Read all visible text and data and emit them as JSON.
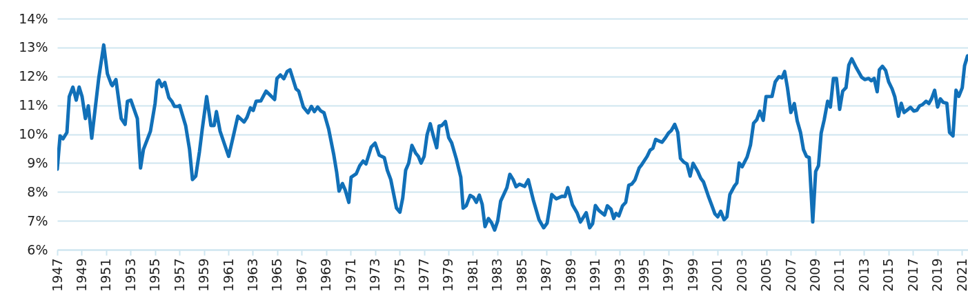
{
  "chart_data": {
    "type": "line",
    "xlim": [
      1947,
      2021.5
    ],
    "ylim": [
      6,
      14
    ],
    "xticks": [
      1947,
      1949,
      1951,
      1953,
      1955,
      1957,
      1959,
      1961,
      1963,
      1965,
      1967,
      1969,
      1971,
      1973,
      1975,
      1977,
      1979,
      1981,
      1983,
      1985,
      1987,
      1989,
      1991,
      1993,
      1995,
      1997,
      1999,
      2001,
      2003,
      2005,
      2007,
      2009,
      2011,
      2013,
      2015,
      2017,
      2019,
      2021
    ],
    "yticks": [
      {
        "value": 6,
        "label": "6%"
      },
      {
        "value": 7,
        "label": "7%"
      },
      {
        "value": 8,
        "label": "8%"
      },
      {
        "value": 9,
        "label": "9%"
      },
      {
        "value": 10,
        "label": "10%"
      },
      {
        "value": 11,
        "label": "11%"
      },
      {
        "value": 12,
        "label": "12%"
      },
      {
        "value": 13,
        "label": "13%"
      },
      {
        "value": 14,
        "label": "14%"
      }
    ],
    "grid": "y",
    "marker": "none",
    "line_style": "solid",
    "series": [
      {
        "color": "#1170b8",
        "x": [
          1947.0,
          1947.23,
          1947.47,
          1947.79,
          1947.98,
          1948.28,
          1948.55,
          1948.79,
          1949.03,
          1949.3,
          1949.54,
          1949.82,
          1950.39,
          1950.8,
          1951.1,
          1951.42,
          1951.5,
          1951.8,
          1952.23,
          1952.55,
          1952.74,
          1953.02,
          1953.55,
          1953.81,
          1954.05,
          1954.62,
          1955.0,
          1955.18,
          1955.32,
          1955.56,
          1955.8,
          1956.13,
          1956.37,
          1956.59,
          1956.88,
          1957.01,
          1957.5,
          1957.82,
          1958.06,
          1958.33,
          1958.63,
          1958.85,
          1959.22,
          1959.57,
          1959.83,
          1960.02,
          1960.32,
          1961.02,
          1961.45,
          1961.77,
          1962.28,
          1962.52,
          1962.8,
          1963.03,
          1963.27,
          1963.65,
          1964.08,
          1964.78,
          1964.97,
          1965.25,
          1965.53,
          1965.81,
          1966.04,
          1966.53,
          1966.75,
          1967.13,
          1967.51,
          1967.79,
          1968.03,
          1968.3,
          1968.54,
          1968.82,
          1969.2,
          1969.61,
          1969.86,
          1970.05,
          1970.33,
          1970.55,
          1970.85,
          1971.04,
          1971.46,
          1971.74,
          1972.02,
          1972.25,
          1972.68,
          1973.0,
          1973.34,
          1973.75,
          1974.0,
          1974.28,
          1974.75,
          1975.03,
          1975.26,
          1975.5,
          1975.75,
          1976.01,
          1976.31,
          1976.54,
          1976.76,
          1977.01,
          1977.25,
          1977.51,
          1977.76,
          1978.04,
          1978.23,
          1978.46,
          1978.75,
          1979.02,
          1979.26,
          1979.64,
          1980.01,
          1980.2,
          1980.45,
          1980.77,
          1981.05,
          1981.28,
          1981.52,
          1981.76,
          1981.99,
          1982.27,
          1982.52,
          1982.78,
          1983.03,
          1983.27,
          1983.49,
          1983.78,
          1984.02,
          1984.29,
          1984.53,
          1984.81,
          1985.23,
          1985.53,
          1985.94,
          1986.41,
          1986.79,
          1987.07,
          1987.45,
          1987.82,
          1988.29,
          1988.53,
          1988.76,
          1989.14,
          1989.52,
          1989.8,
          1990.27,
          1990.55,
          1990.79,
          1991.02,
          1991.3,
          1991.77,
          1992.0,
          1992.3,
          1992.52,
          1992.71,
          1992.94,
          1993.24,
          1993.5,
          1993.75,
          1993.99,
          1994.26,
          1994.6,
          1994.82,
          1995.25,
          1995.5,
          1995.72,
          1995.95,
          1996.19,
          1996.47,
          1996.76,
          1997.0,
          1997.22,
          1997.51,
          1997.76,
          1997.98,
          1998.26,
          1998.51,
          1998.77,
          1999.01,
          1999.39,
          1999.64,
          1999.86,
          2000.24,
          2000.52,
          2000.8,
          2001.03,
          2001.27,
          2001.55,
          2001.78,
          2002.02,
          2002.4,
          2002.59,
          2002.78,
          2003.02,
          2003.43,
          2003.71,
          2003.96,
          2004.22,
          2004.47,
          2004.75,
          2004.98,
          2005.47,
          2005.73,
          2006.03,
          2006.29,
          2006.5,
          2006.73,
          2007.01,
          2007.29,
          2007.53,
          2007.8,
          2008.04,
          2008.29,
          2008.51,
          2008.8,
          2009.04,
          2009.27,
          2009.49,
          2009.74,
          2010.02,
          2010.24,
          2010.49,
          2010.74,
          2011.0,
          2011.25,
          2011.52,
          2011.75,
          2011.99,
          2012.37,
          2012.8,
          2013.07,
          2013.37,
          2013.59,
          2013.82,
          2014.07,
          2014.25,
          2014.5,
          2014.76,
          2015.01,
          2015.29,
          2015.51,
          2015.81,
          2016.04,
          2016.27,
          2016.51,
          2016.79,
          2017.07,
          2017.32,
          2017.54,
          2017.77,
          2018.07,
          2018.3,
          2018.52,
          2018.77,
          2019.01,
          2019.24,
          2019.47,
          2019.77,
          2019.99,
          2020.27,
          2020.52,
          2020.75,
          2021.03,
          2021.22,
          2021.46
        ],
        "values": [
          8.79,
          9.94,
          9.84,
          10.06,
          11.3,
          11.63,
          11.18,
          11.63,
          11.3,
          10.54,
          10.98,
          9.86,
          11.93,
          13.09,
          12.09,
          11.73,
          11.68,
          11.89,
          10.54,
          10.34,
          11.14,
          11.18,
          10.54,
          8.83,
          9.47,
          10.1,
          11.06,
          11.81,
          11.87,
          11.65,
          11.79,
          11.26,
          11.14,
          10.96,
          10.96,
          10.99,
          10.3,
          9.47,
          8.43,
          8.55,
          9.39,
          10.14,
          11.3,
          10.3,
          10.3,
          10.78,
          10.1,
          9.23,
          10.02,
          10.62,
          10.42,
          10.58,
          10.91,
          10.82,
          11.14,
          11.15,
          11.49,
          11.2,
          11.93,
          12.05,
          11.92,
          12.17,
          12.23,
          11.57,
          11.49,
          10.94,
          10.74,
          10.96,
          10.78,
          10.94,
          10.81,
          10.74,
          10.18,
          9.31,
          8.67,
          8.03,
          8.29,
          8.07,
          7.64,
          8.51,
          8.63,
          8.91,
          9.07,
          8.97,
          9.55,
          9.69,
          9.27,
          9.19,
          8.75,
          8.43,
          7.44,
          7.3,
          7.79,
          8.75,
          9.0,
          9.61,
          9.35,
          9.23,
          9.0,
          9.23,
          9.98,
          10.36,
          9.94,
          9.53,
          10.28,
          10.3,
          10.44,
          9.88,
          9.7,
          9.15,
          8.51,
          7.44,
          7.52,
          7.88,
          7.81,
          7.64,
          7.89,
          7.57,
          6.8,
          7.08,
          6.94,
          6.68,
          7.0,
          7.68,
          7.88,
          8.15,
          8.61,
          8.43,
          8.18,
          8.27,
          8.19,
          8.42,
          7.72,
          7.04,
          6.76,
          6.92,
          7.91,
          7.76,
          7.85,
          7.84,
          8.15,
          7.56,
          7.28,
          6.96,
          7.28,
          6.76,
          6.9,
          7.53,
          7.36,
          7.2,
          7.52,
          7.4,
          7.08,
          7.26,
          7.17,
          7.52,
          7.64,
          8.23,
          8.27,
          8.42,
          8.83,
          8.95,
          9.23,
          9.45,
          9.51,
          9.82,
          9.77,
          9.72,
          9.88,
          10.04,
          10.12,
          10.34,
          10.06,
          9.16,
          9.03,
          8.97,
          8.55,
          8.99,
          8.71,
          8.47,
          8.35,
          7.88,
          7.56,
          7.24,
          7.14,
          7.33,
          7.04,
          7.14,
          7.91,
          8.21,
          8.31,
          9.0,
          8.87,
          9.21,
          9.63,
          10.38,
          10.5,
          10.8,
          10.48,
          11.3,
          11.31,
          11.81,
          11.99,
          11.95,
          12.17,
          11.61,
          10.75,
          11.06,
          10.46,
          10.06,
          9.47,
          9.23,
          9.19,
          6.96,
          8.71,
          8.91,
          10.04,
          10.5,
          11.14,
          10.94,
          11.93,
          11.93,
          10.86,
          11.49,
          11.61,
          12.39,
          12.61,
          12.29,
          11.97,
          11.89,
          11.93,
          11.85,
          11.93,
          11.47,
          12.23,
          12.35,
          12.21,
          11.81,
          11.57,
          11.3,
          10.62,
          11.07,
          10.75,
          10.83,
          10.93,
          10.8,
          10.83,
          10.98,
          11.02,
          11.14,
          11.06,
          11.23,
          11.52,
          10.94,
          11.22,
          11.1,
          11.07,
          10.06,
          9.94,
          11.52,
          11.31,
          11.61,
          12.37,
          12.71
        ]
      }
    ]
  }
}
